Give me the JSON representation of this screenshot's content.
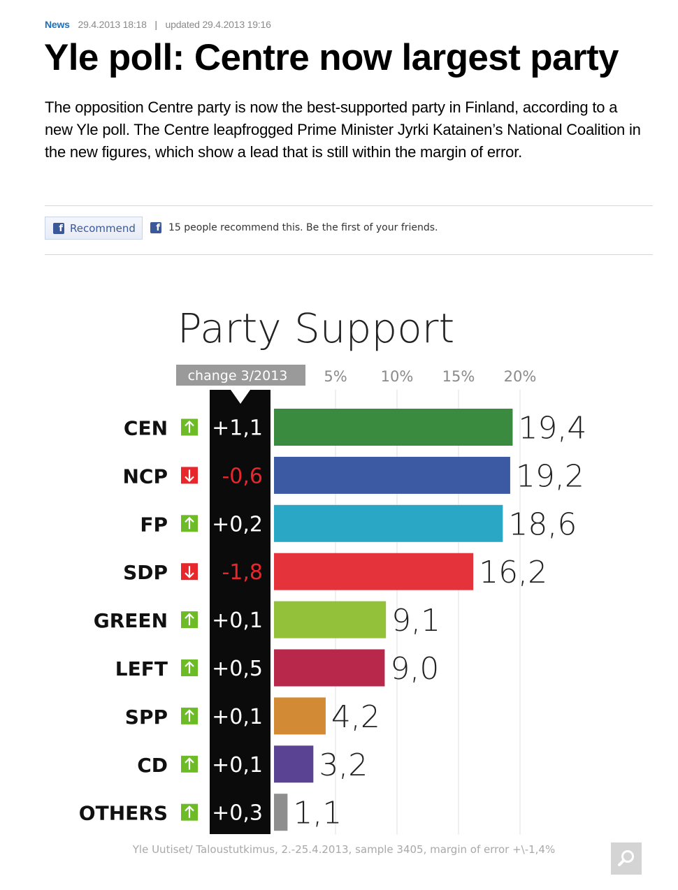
{
  "article": {
    "section": "News",
    "published": "29.4.2013 18:18",
    "separator": "|",
    "updated": "updated 29.4.2013 19:16",
    "headline": "Yle poll: Centre now largest party",
    "lede": "The opposition Centre party is now the best-supported party in Finland, according to a new Yle poll. The Centre leapfrogged Prime Minister Jyrki Katainen’s National Coalition in the new figures, which show a lead that is still within the margin of error."
  },
  "social": {
    "button_label": "Recommend",
    "count_text": "15 people recommend this. Be the first of your friends.",
    "icon": "facebook-icon"
  },
  "chart_data": {
    "type": "bar",
    "orientation": "horizontal",
    "title": "Party Support",
    "change_header": "change 3/2013",
    "x_ticks": [
      "5%",
      "10%",
      "15%",
      "20%"
    ],
    "xlim": [
      0,
      20
    ],
    "grid": true,
    "categories": [
      "CEN",
      "NCP",
      "FP",
      "SDP",
      "GREEN",
      "LEFT",
      "SPP",
      "CD",
      "OTHERS"
    ],
    "values": [
      19.4,
      19.2,
      18.6,
      16.2,
      9.1,
      9.0,
      4.2,
      3.2,
      1.1
    ],
    "value_labels": [
      "19,4",
      "19,2",
      "18,6",
      "16,2",
      "9,1",
      "9,0",
      "4,2",
      "3,2",
      "1,1"
    ],
    "changes": [
      "+1,1",
      "-0,6",
      "+0,2",
      "-1,8",
      "+0,1",
      "+0,5",
      "+0,1",
      "+0,1",
      "+0,3"
    ],
    "change_directions": [
      "up",
      "down",
      "up",
      "down",
      "up",
      "up",
      "up",
      "up",
      "up"
    ],
    "colors": [
      "#3a8a3f",
      "#3b5aa3",
      "#2aa7c5",
      "#e4333a",
      "#94c13a",
      "#b8284b",
      "#d38a34",
      "#5b4394",
      "#8e8e8e"
    ],
    "up_color": "#6dbb26",
    "down_color": "#e8272d",
    "source": "Yle Uutiset/ Taloustutkimus, 2.-25.4.2013, sample 3405, margin of error +\\-1,4%"
  },
  "controls": {
    "zoom_icon": "magnifier-icon"
  }
}
